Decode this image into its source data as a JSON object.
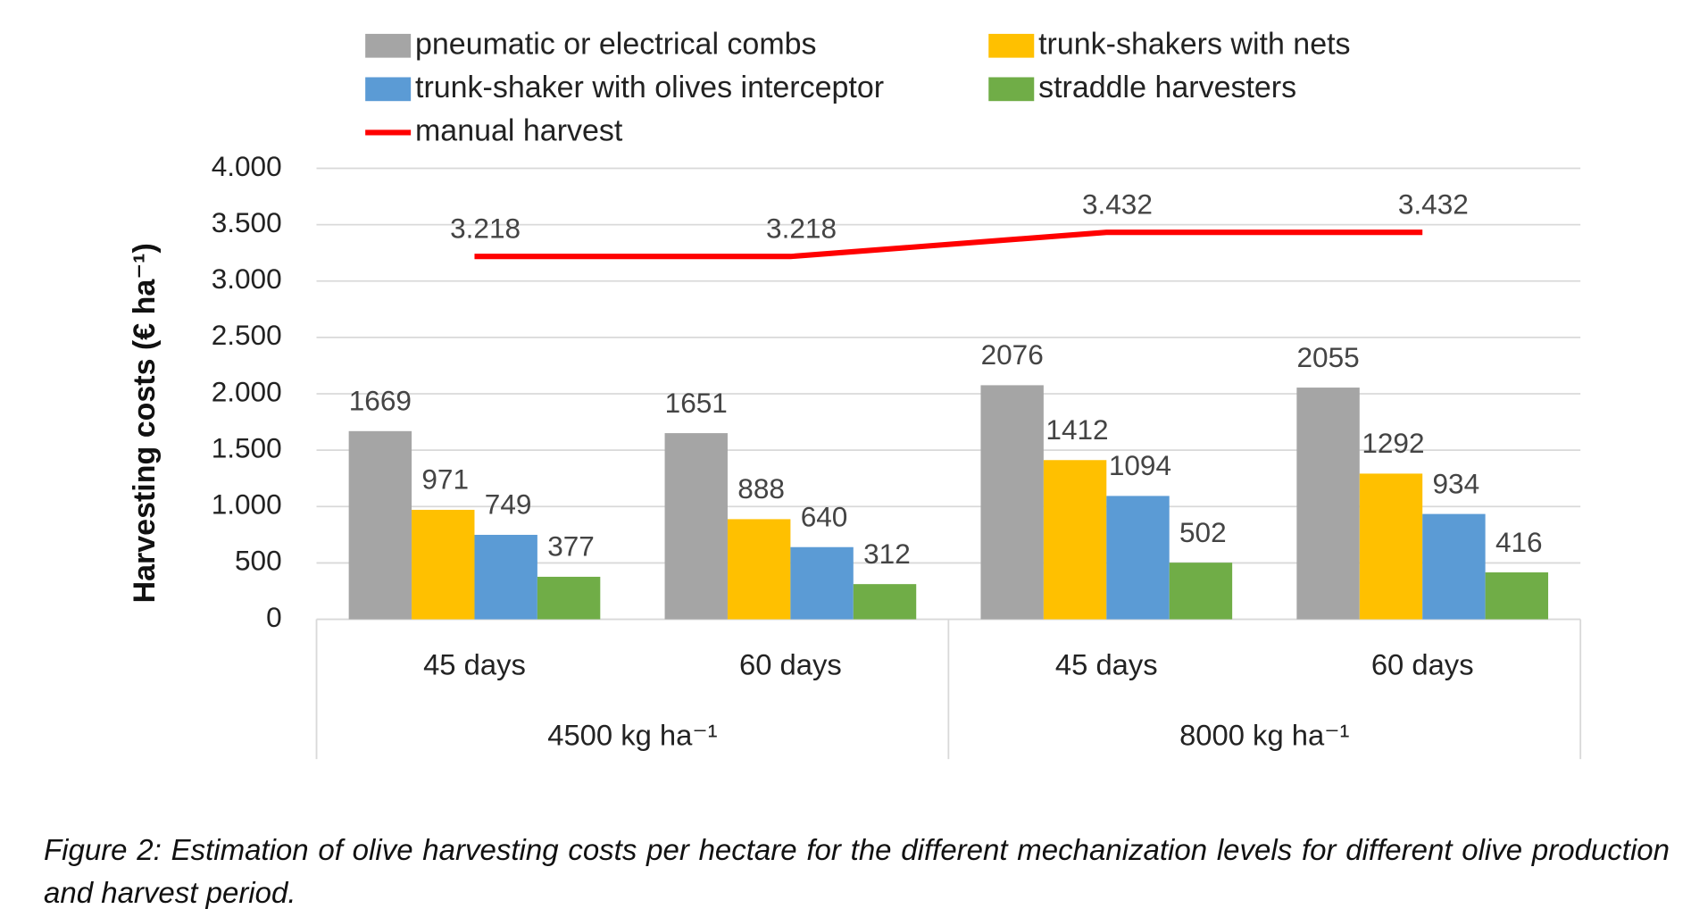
{
  "chart_data": {
    "type": "bar",
    "categories": [
      "45 days",
      "60 days",
      "45 days",
      "60 days"
    ],
    "groups": [
      {
        "label": "4500 kg ha⁻¹",
        "span": [
          0,
          1
        ]
      },
      {
        "label": "8000 kg ha⁻¹",
        "span": [
          2,
          3
        ]
      }
    ],
    "y_label": "Harvesting costs (€ ha⁻¹)",
    "ylim": [
      0,
      4000
    ],
    "yticks": [
      0,
      500,
      {
        "value": 1000,
        "label": "1.000"
      },
      {
        "value": 1500,
        "label": "1.500"
      },
      {
        "value": 2000,
        "label": "2.000"
      },
      {
        "value": 2500,
        "label": "2.500"
      },
      {
        "value": 3000,
        "label": "3.000"
      },
      {
        "value": 3500,
        "label": "3.500"
      },
      {
        "value": 4000,
        "label": "4.000"
      }
    ],
    "grid": true,
    "series": [
      {
        "name": "pneumatic or electrical combs",
        "color": "#a5a5a5",
        "values": [
          1669,
          1651,
          2076,
          2055
        ]
      },
      {
        "name": "trunk-shakers with nets",
        "color": "#ffc000",
        "values": [
          971,
          888,
          1412,
          1292
        ]
      },
      {
        "name": "trunk-shaker with olives interceptor",
        "color": "#5b9bd5",
        "values": [
          749,
          640,
          1094,
          934
        ]
      },
      {
        "name": "straddle harvesters",
        "color": "#70ad47",
        "values": [
          377,
          312,
          502,
          416
        ]
      },
      {
        "name": "manual harvest",
        "type": "line",
        "color": "#ff0000",
        "values": [
          3218,
          3218,
          3432,
          3432
        ],
        "value_labels": [
          "3.218",
          "3.218",
          "3.432",
          "3.432"
        ]
      }
    ]
  },
  "caption": "Figure 2: Estimation of olive harvesting costs per hectare for the different mechanization levels for different olive production and harvest period."
}
